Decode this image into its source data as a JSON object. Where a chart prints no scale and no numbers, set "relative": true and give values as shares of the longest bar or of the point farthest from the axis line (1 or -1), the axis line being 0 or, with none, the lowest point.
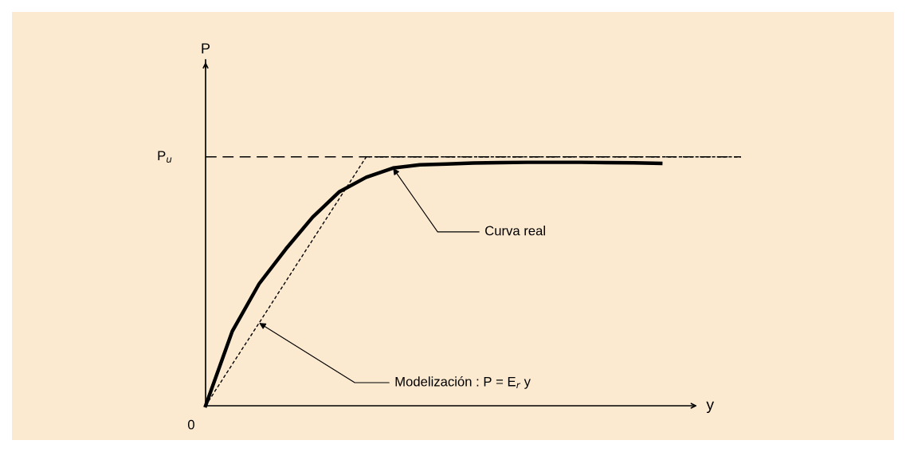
{
  "chart_data": {
    "type": "line",
    "relative": true,
    "xlabel": "y",
    "categories": [
      null,
      null,
      null,
      null,
      null,
      null,
      null,
      null,
      null,
      null,
      null,
      null,
      null,
      null,
      null,
      null,
      null,
      null,
      null,
      null,
      null
    ],
    "series": [
      {
        "color": "#000000",
        "line_style": "solid",
        "values": [
          0,
          0.3,
          0.49,
          0.63,
          0.758,
          0.86,
          0.918,
          0.955,
          0.968,
          0.971,
          0.975,
          0.977,
          0.978,
          0.978,
          0.978,
          0.977,
          0.976,
          0.974,
          null,
          null,
          null
        ]
      },
      {
        "color": "#000000",
        "line_style": "dotted",
        "values": [
          0,
          0.167,
          0.333,
          0.5,
          0.667,
          0.833,
          1,
          1,
          1,
          1,
          1,
          1,
          1,
          1,
          1,
          1,
          1,
          1,
          1,
          1,
          1
        ]
      }
    ],
    "ref_lines": [
      {
        "axis": "y",
        "value": 1,
        "label": "P$_{u}$",
        "color": "#000000",
        "line_style": "dashed"
      }
    ],
    "annotations": [
      "P",
      "0",
      "Curva real",
      "Modelización : P = E$_{r}$ y"
    ]
  }
}
